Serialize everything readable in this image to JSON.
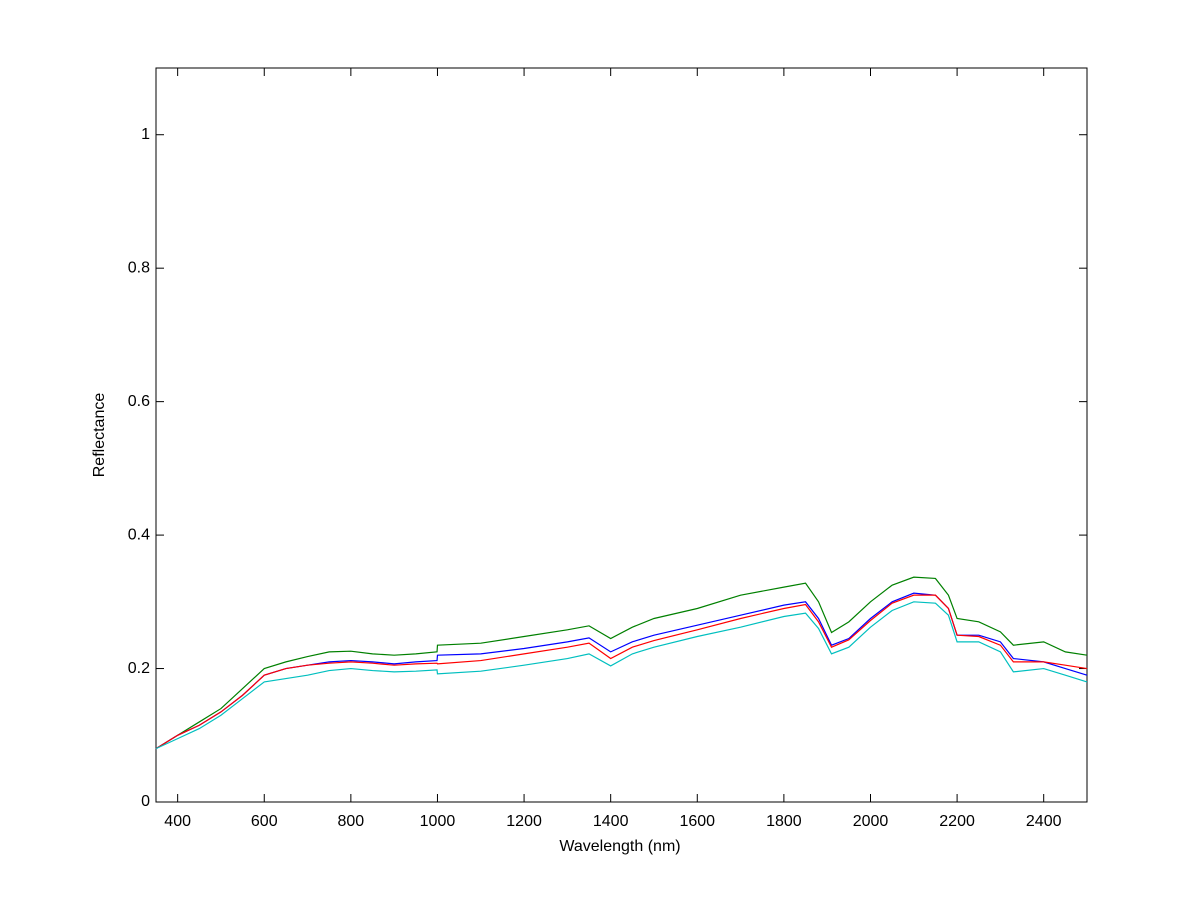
{
  "chart_data": {
    "type": "line",
    "x_label": "Wavelength (nm)",
    "y_label": "Reflectance",
    "xlim": [
      350,
      2500
    ],
    "ylim": [
      0,
      1.1
    ],
    "xticks": [
      400,
      600,
      800,
      1000,
      1200,
      1400,
      1600,
      1800,
      2000,
      2200,
      2400
    ],
    "yticks": [
      0,
      0.2,
      0.4,
      0.6,
      0.8,
      1
    ],
    "grid": false,
    "x": [
      350,
      400,
      450,
      500,
      550,
      600,
      650,
      700,
      750,
      800,
      850,
      900,
      950,
      999,
      1000,
      1100,
      1200,
      1300,
      1350,
      1400,
      1450,
      1500,
      1600,
      1700,
      1800,
      1850,
      1880,
      1910,
      1950,
      2000,
      2050,
      2100,
      2150,
      2180,
      2200,
      2250,
      2300,
      2330,
      2400,
      2450,
      2500
    ],
    "series": [
      {
        "color": "#008000",
        "values": [
          0.08,
          0.1,
          0.12,
          0.14,
          0.17,
          0.2,
          0.21,
          0.218,
          0.225,
          0.226,
          0.222,
          0.22,
          0.222,
          0.225,
          0.235,
          0.238,
          0.248,
          0.258,
          0.264,
          0.245,
          0.262,
          0.275,
          0.29,
          0.31,
          0.322,
          0.328,
          0.3,
          0.254,
          0.27,
          0.3,
          0.325,
          0.337,
          0.335,
          0.31,
          0.275,
          0.27,
          0.255,
          0.235,
          0.24,
          0.225,
          0.22
        ]
      },
      {
        "color": "#0000ff",
        "values": [
          0.08,
          0.1,
          0.115,
          0.135,
          0.16,
          0.19,
          0.2,
          0.205,
          0.21,
          0.212,
          0.21,
          0.207,
          0.21,
          0.212,
          0.22,
          0.222,
          0.23,
          0.24,
          0.246,
          0.225,
          0.24,
          0.25,
          0.265,
          0.28,
          0.295,
          0.3,
          0.275,
          0.235,
          0.245,
          0.275,
          0.3,
          0.313,
          0.31,
          0.29,
          0.25,
          0.25,
          0.24,
          0.215,
          0.21,
          0.2,
          0.19
        ]
      },
      {
        "color": "#ff0000",
        "values": [
          0.08,
          0.1,
          0.115,
          0.135,
          0.16,
          0.19,
          0.2,
          0.205,
          0.208,
          0.21,
          0.208,
          0.205,
          0.207,
          0.208,
          0.207,
          0.212,
          0.222,
          0.232,
          0.238,
          0.215,
          0.232,
          0.242,
          0.258,
          0.275,
          0.29,
          0.296,
          0.27,
          0.232,
          0.243,
          0.272,
          0.298,
          0.31,
          0.31,
          0.29,
          0.25,
          0.248,
          0.235,
          0.21,
          0.21,
          0.205,
          0.2
        ]
      },
      {
        "color": "#00bfbf",
        "values": [
          0.08,
          0.095,
          0.11,
          0.13,
          0.155,
          0.18,
          0.185,
          0.19,
          0.197,
          0.2,
          0.197,
          0.195,
          0.196,
          0.198,
          0.192,
          0.196,
          0.205,
          0.215,
          0.222,
          0.204,
          0.222,
          0.232,
          0.248,
          0.262,
          0.278,
          0.283,
          0.26,
          0.222,
          0.232,
          0.262,
          0.287,
          0.3,
          0.298,
          0.28,
          0.24,
          0.24,
          0.225,
          0.195,
          0.2,
          0.19,
          0.18
        ]
      }
    ]
  }
}
